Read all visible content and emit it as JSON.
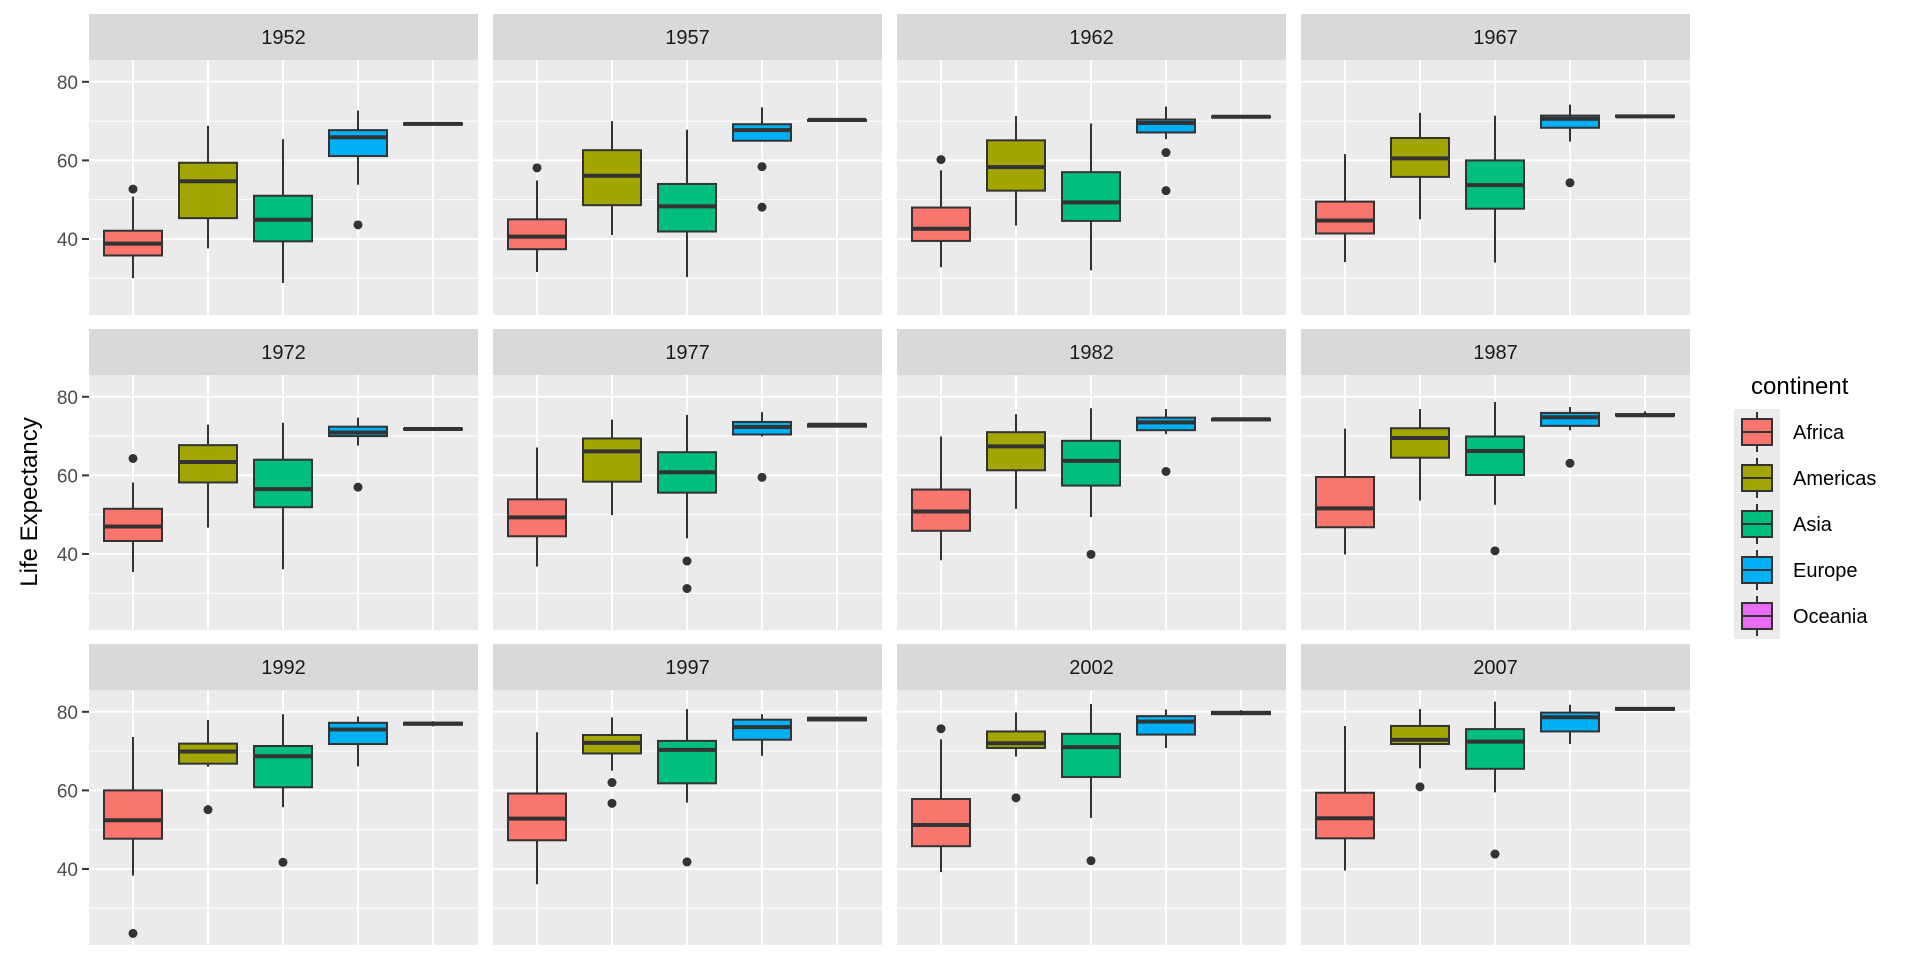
{
  "chart_data": {
    "type": "boxplot",
    "facet_by": "year",
    "ylabel": "Life Expectancy",
    "xlabel": "",
    "ylim": [
      20.65,
      85.55
    ],
    "y_ticks": [
      40,
      60,
      80
    ],
    "y_tick_labels": [
      "40",
      "60",
      "80"
    ],
    "grid": true,
    "legend": {
      "title": "continent",
      "position": "right",
      "entries": [
        "Africa",
        "Americas",
        "Asia",
        "Europe",
        "Oceania"
      ]
    },
    "categories": [
      "Africa",
      "Americas",
      "Asia",
      "Europe",
      "Oceania"
    ],
    "colors": {
      "Africa": "#F8766D",
      "Americas": "#A3A500",
      "Asia": "#00BF7D",
      "Europe": "#00B0F6",
      "Oceania": "#E76BF3"
    },
    "stat_fields": [
      "lower_whisker",
      "q1",
      "median",
      "q3",
      "upper_whisker",
      "outliers"
    ],
    "panels": [
      {
        "year": "1952",
        "boxes": {
          "Africa": [
            30.0,
            35.8,
            38.8,
            42.1,
            50.8,
            [
              52.7
            ]
          ],
          "Americas": [
            37.6,
            45.3,
            54.7,
            59.4,
            68.8,
            []
          ],
          "Asia": [
            28.8,
            39.4,
            44.9,
            51.0,
            65.4,
            []
          ],
          "Europe": [
            53.8,
            61.1,
            65.9,
            67.7,
            72.7,
            [
              43.6
            ]
          ],
          "Oceania": [
            69.1,
            69.1,
            69.3,
            69.4,
            69.4,
            []
          ]
        }
      },
      {
        "year": "1957",
        "boxes": {
          "Africa": [
            31.6,
            37.4,
            40.6,
            45.0,
            54.9,
            [
              58.1
            ]
          ],
          "Americas": [
            41.0,
            48.6,
            56.1,
            62.6,
            70.0,
            []
          ],
          "Asia": [
            30.3,
            41.9,
            48.3,
            54.0,
            67.8,
            []
          ],
          "Europe": [
            64.9,
            65.0,
            67.7,
            69.2,
            73.5,
            [
              58.4,
              48.1
            ]
          ],
          "Oceania": [
            70.3,
            70.3,
            70.3,
            70.3,
            70.3,
            []
          ]
        }
      },
      {
        "year": "1962",
        "boxes": {
          "Africa": [
            32.8,
            39.5,
            42.6,
            48.0,
            57.5,
            [
              60.2
            ]
          ],
          "Americas": [
            43.4,
            52.3,
            58.3,
            65.1,
            71.3,
            []
          ],
          "Asia": [
            32.0,
            44.6,
            49.3,
            57.0,
            69.4,
            []
          ],
          "Europe": [
            65.4,
            67.1,
            69.5,
            70.4,
            73.7,
            [
              62.0,
              52.3
            ]
          ],
          "Oceania": [
            71.0,
            71.0,
            71.1,
            71.2,
            71.2,
            []
          ]
        }
      },
      {
        "year": "1967",
        "boxes": {
          "Africa": [
            34.1,
            41.4,
            44.7,
            49.5,
            61.6,
            []
          ],
          "Americas": [
            45.0,
            55.8,
            60.5,
            65.7,
            72.1,
            []
          ],
          "Asia": [
            34.0,
            47.7,
            53.7,
            60.0,
            71.4,
            []
          ],
          "Europe": [
            64.8,
            68.3,
            70.6,
            71.4,
            74.2,
            [
              54.3
            ]
          ],
          "Oceania": [
            71.1,
            71.1,
            71.2,
            71.4,
            71.5,
            []
          ]
        }
      },
      {
        "year": "1972",
        "boxes": {
          "Africa": [
            35.4,
            43.3,
            47.0,
            51.5,
            58.2,
            [
              64.3
            ]
          ],
          "Americas": [
            46.7,
            58.2,
            63.4,
            67.7,
            72.9,
            []
          ],
          "Asia": [
            36.1,
            51.9,
            56.5,
            64.0,
            73.4,
            []
          ],
          "Europe": [
            67.6,
            70.0,
            70.9,
            72.4,
            74.7,
            [
              57.0
            ]
          ],
          "Oceania": [
            71.6,
            71.7,
            71.8,
            71.9,
            71.9,
            []
          ]
        }
      },
      {
        "year": "1977",
        "boxes": {
          "Africa": [
            36.8,
            44.5,
            49.3,
            53.9,
            67.1,
            []
          ],
          "Americas": [
            49.9,
            58.4,
            66.1,
            69.4,
            74.2,
            []
          ],
          "Asia": [
            44.0,
            55.6,
            60.8,
            65.9,
            75.4,
            [
              38.2,
              31.2
            ]
          ],
          "Europe": [
            69.9,
            70.4,
            72.3,
            73.6,
            76.1,
            [
              59.5
            ]
          ],
          "Oceania": [
            72.2,
            72.4,
            72.9,
            73.0,
            73.2,
            []
          ]
        }
      },
      {
        "year": "1982",
        "boxes": {
          "Africa": [
            38.4,
            45.9,
            50.8,
            56.4,
            69.9,
            []
          ],
          "Americas": [
            51.5,
            61.3,
            67.4,
            71.0,
            75.6,
            []
          ],
          "Asia": [
            49.4,
            57.4,
            63.7,
            68.8,
            77.1,
            [
              39.9
            ]
          ],
          "Europe": [
            70.5,
            71.5,
            73.5,
            74.7,
            76.9,
            [
              61.0
            ]
          ],
          "Oceania": [
            73.8,
            74.0,
            74.3,
            74.4,
            74.7,
            []
          ]
        }
      },
      {
        "year": "1987",
        "boxes": {
          "Africa": [
            39.9,
            46.8,
            51.6,
            59.6,
            71.9,
            []
          ],
          "Americas": [
            53.6,
            64.5,
            69.5,
            72.0,
            76.9,
            []
          ],
          "Asia": [
            52.5,
            60.1,
            66.2,
            69.9,
            78.7,
            [
              40.8
            ]
          ],
          "Europe": [
            71.5,
            72.6,
            74.8,
            75.9,
            77.4,
            [
              63.1
            ]
          ],
          "Oceania": [
            74.9,
            75.2,
            75.3,
            75.6,
            76.3,
            []
          ]
        }
      },
      {
        "year": "1992",
        "boxes": {
          "Africa": [
            38.3,
            47.7,
            52.4,
            60.0,
            73.6,
            [
              23.6
            ]
          ],
          "Americas": [
            66.0,
            66.8,
            69.9,
            71.9,
            77.9,
            [
              55.1
            ]
          ],
          "Asia": [
            55.7,
            60.8,
            68.7,
            71.3,
            79.4,
            [
              41.7
            ]
          ],
          "Europe": [
            66.1,
            71.8,
            75.5,
            77.2,
            78.8,
            []
          ],
          "Oceania": [
            76.3,
            76.7,
            77.0,
            77.2,
            77.6,
            []
          ]
        }
      },
      {
        "year": "1997",
        "boxes": {
          "Africa": [
            36.1,
            47.3,
            52.8,
            59.2,
            74.8,
            []
          ],
          "Americas": [
            65.0,
            69.4,
            72.1,
            74.1,
            78.6,
            [
              62.0,
              56.7
            ]
          ],
          "Asia": [
            56.9,
            61.8,
            70.3,
            72.6,
            80.7,
            [
              41.8
            ]
          ],
          "Europe": [
            68.8,
            72.9,
            76.1,
            78.0,
            79.4,
            []
          ],
          "Oceania": [
            77.6,
            77.8,
            78.2,
            78.5,
            78.8,
            []
          ]
        }
      },
      {
        "year": "2002",
        "boxes": {
          "Africa": [
            39.2,
            45.8,
            51.2,
            57.8,
            73.0,
            [
              75.7
            ]
          ],
          "Americas": [
            68.6,
            70.8,
            72.0,
            75.0,
            79.8,
            [
              58.1
            ]
          ],
          "Asia": [
            53.0,
            63.4,
            71.0,
            74.4,
            82.0,
            [
              42.1
            ]
          ],
          "Europe": [
            70.8,
            74.2,
            77.5,
            78.9,
            80.6,
            []
          ],
          "Oceania": [
            79.1,
            79.4,
            79.7,
            80.0,
            80.4,
            []
          ]
        }
      },
      {
        "year": "2007",
        "boxes": {
          "Africa": [
            39.6,
            47.8,
            52.9,
            59.4,
            76.4,
            []
          ],
          "Americas": [
            65.6,
            71.8,
            72.9,
            76.4,
            80.7,
            [
              60.9
            ]
          ],
          "Asia": [
            59.5,
            65.5,
            72.4,
            75.6,
            82.6,
            [
              43.8
            ]
          ],
          "Europe": [
            71.8,
            75.0,
            78.6,
            79.8,
            81.8,
            []
          ],
          "Oceania": [
            80.2,
            80.5,
            80.7,
            81.0,
            81.2,
            []
          ]
        }
      }
    ]
  }
}
